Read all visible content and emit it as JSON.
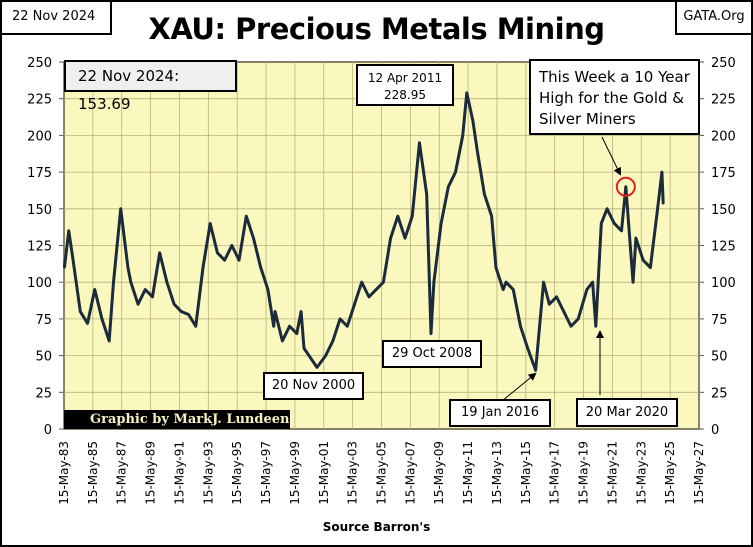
{
  "header": {
    "date": "22 Nov 2024",
    "site": "GATA.Org",
    "title": "XAU: Precious Metals Mining"
  },
  "footer": {
    "source": "Source Barron's",
    "credit": "Graphic by MarkJ. Lundeen"
  },
  "annotations": {
    "latest": "22 Nov 2024:  153.69",
    "peak_date": "12 Apr 2011",
    "peak_value": "228.95",
    "note": "This Week a 10 Year High for the Gold & Silver Miners",
    "low_2008": "29 Oct 2008",
    "low_2000": "20 Nov 2000",
    "low_2016": "19 Jan 2016",
    "low_2020": "20 Mar 2020"
  },
  "colors": {
    "plot_bg": "#fbf8bf",
    "line": "#1b2b3b",
    "grid": "#b8b07a",
    "highlight": "#e02020"
  },
  "chart_data": {
    "type": "line",
    "title": "XAU: Precious Metals Mining",
    "xlabel": "Source Barron's",
    "ylabel": "",
    "ylim": [
      0,
      250
    ],
    "xlim": [
      1983.37,
      2027.37
    ],
    "yticks": [
      0,
      25,
      50,
      75,
      100,
      125,
      150,
      175,
      200,
      225,
      250
    ],
    "xticks": [
      "15-May-83",
      "15-May-85",
      "15-May-87",
      "15-May-89",
      "15-May-91",
      "15-May-93",
      "15-May-95",
      "15-May-97",
      "15-May-99",
      "15-May-01",
      "15-May-03",
      "15-May-05",
      "15-May-07",
      "15-May-09",
      "15-May-11",
      "15-May-13",
      "15-May-15",
      "15-May-17",
      "15-May-19",
      "15-May-21",
      "15-May-23",
      "15-May-25",
      "15-May-27"
    ],
    "grid": true,
    "series": [
      {
        "name": "XAU",
        "x": [
          1983.4,
          1983.7,
          1984,
          1984.5,
          1985,
          1985.5,
          1986,
          1986.5,
          1986.8,
          1987.3,
          1987.8,
          1988,
          1988.5,
          1989,
          1989.5,
          1990,
          1990.5,
          1991,
          1991.5,
          1992,
          1992.5,
          1993,
          1993.5,
          1994,
          1994.5,
          1995,
          1995.5,
          1996,
          1996.5,
          1997,
          1997.5,
          1997.9,
          1998,
          1998.5,
          1999,
          1999.5,
          1999.8,
          2000,
          2000.9,
          2001.5,
          2002,
          2002.5,
          2003,
          2003.5,
          2004,
          2004.5,
          2005,
          2005.5,
          2006,
          2006.5,
          2007,
          2007.5,
          2008,
          2008.5,
          2008.8,
          2009,
          2009.5,
          2010,
          2010.5,
          2011,
          2011.28,
          2011.7,
          2012,
          2012.5,
          2013,
          2013.3,
          2013.8,
          2014,
          2014.5,
          2015,
          2015.5,
          2016.05,
          2016.6,
          2017,
          2017.5,
          2018,
          2018.5,
          2019,
          2019.6,
          2020,
          2020.22,
          2020.6,
          2021,
          2021.5,
          2022,
          2022.3,
          2022.8,
          2023,
          2023.5,
          2024,
          2024.5,
          2024.8,
          2024.89
        ],
        "values": [
          110,
          135,
          115,
          80,
          72,
          95,
          75,
          60,
          100,
          150,
          110,
          100,
          85,
          95,
          90,
          120,
          100,
          85,
          80,
          78,
          70,
          110,
          140,
          120,
          115,
          125,
          115,
          145,
          130,
          110,
          95,
          70,
          80,
          60,
          70,
          65,
          80,
          55,
          42,
          50,
          60,
          75,
          70,
          85,
          100,
          90,
          95,
          100,
          130,
          145,
          130,
          145,
          195,
          160,
          65,
          100,
          140,
          165,
          175,
          200,
          228.95,
          210,
          190,
          160,
          145,
          110,
          95,
          100,
          95,
          70,
          55,
          40,
          100,
          85,
          90,
          80,
          70,
          75,
          95,
          100,
          70,
          140,
          150,
          140,
          135,
          165,
          100,
          130,
          115,
          110,
          150,
          175,
          153.69
        ]
      }
    ]
  }
}
